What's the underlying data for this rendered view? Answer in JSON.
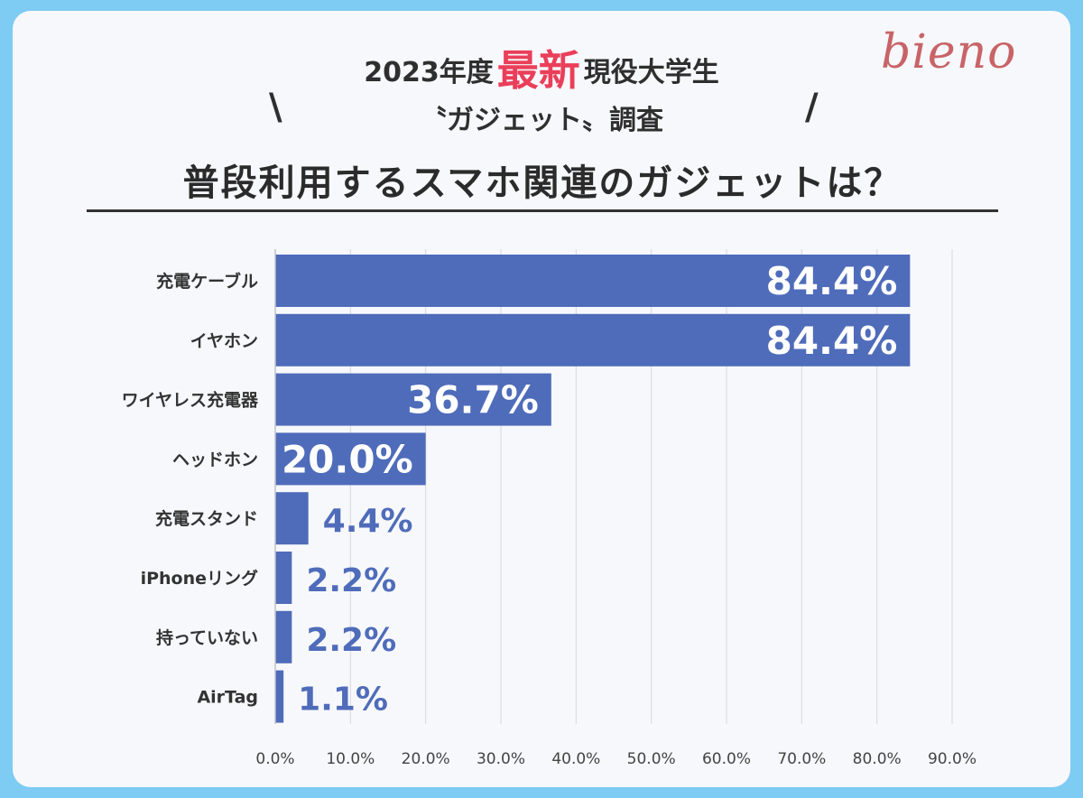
{
  "header": {
    "year_text": "2023年度",
    "highlight": "最新",
    "subject": "現役大学生",
    "topic": "〝ガジェット〟調査",
    "slash_left": "\\",
    "slash_right": "/",
    "logo": "bieno",
    "question": "普段利用するスマホ関連のガジェットは？"
  },
  "colors": {
    "bar": "#4f6cba",
    "value_label_outside": "#4f6cba",
    "value_label_inside": "#ffffff",
    "highlight": "#ea3f5a",
    "frame": "#7ecbf3"
  },
  "chart_data": {
    "type": "bar",
    "orientation": "horizontal",
    "categories": [
      "充電ケーブル",
      "イヤホン",
      "ワイヤレス充電器",
      "ヘッドホン",
      "充電スタンド",
      "iPhoneリング",
      "持っていない",
      "AirTag"
    ],
    "values": [
      84.4,
      84.4,
      36.7,
      20.0,
      4.4,
      2.2,
      2.2,
      1.1
    ],
    "value_labels": [
      "84.4%",
      "84.4%",
      "36.7%",
      "20.0%",
      "4.4%",
      "2.2%",
      "2.2%",
      "1.1%"
    ],
    "xlim": [
      0,
      90
    ],
    "x_ticks": [
      "0.0%",
      "10.0%",
      "20.0%",
      "30.0%",
      "40.0%",
      "50.0%",
      "60.0%",
      "70.0%",
      "80.0%",
      "90.0%"
    ],
    "grid": true,
    "legend": "none"
  }
}
